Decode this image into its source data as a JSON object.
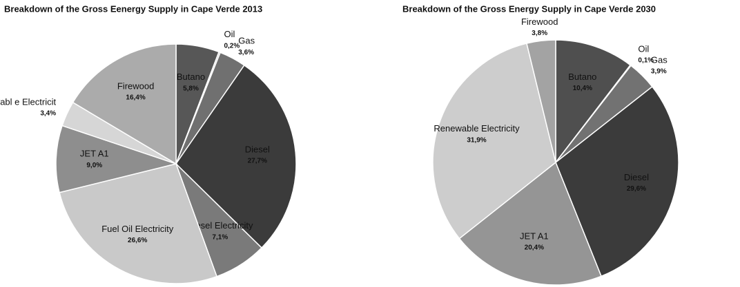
{
  "chart_data": [
    {
      "type": "pie",
      "title": "Breakdown of the Gross Eenergy Supply in Cape Verde 2013",
      "categories": [
        "Butano",
        "Oil",
        "Gas",
        "Diesel",
        "Diesel Electricity",
        "Fuel Oil Electricity",
        "JET A1",
        "Renewabl e Electricit",
        "Firewood"
      ],
      "values": [
        5.8,
        0.2,
        3.6,
        27.7,
        7.1,
        26.6,
        9.0,
        3.4,
        16.4
      ],
      "value_labels": [
        "5,8%",
        "0,2%",
        "3,6%",
        "27,7%",
        "7,1%",
        "26,6%",
        "9,0%",
        "3,4%",
        "16,4%"
      ],
      "colors": [
        "#575757",
        "#c4c4c4",
        "#707070",
        "#3b3b3b",
        "#7a7a7a",
        "#c9c9c9",
        "#8e8e8e",
        "#d6d6d6",
        "#ababab"
      ]
    },
    {
      "type": "pie",
      "title": "Breakdown of the Gross Energy Supply in Cape Verde 2030",
      "categories": [
        "Butano",
        "Oil",
        "Gas",
        "Diesel",
        "JET A1",
        "Renewable Electricity",
        "Firewood"
      ],
      "values": [
        10.4,
        0.1,
        3.9,
        29.6,
        20.4,
        31.9,
        3.8
      ],
      "value_labels": [
        "10,4%",
        "0,1%",
        "3,9%",
        "29,6%",
        "20,4%",
        "31,9%",
        "3,8%"
      ],
      "colors": [
        "#4f4f4f",
        "#c4c4c4",
        "#727272",
        "#3b3b3b",
        "#959595",
        "#cdcdcd",
        "#a3a3a3"
      ]
    }
  ]
}
